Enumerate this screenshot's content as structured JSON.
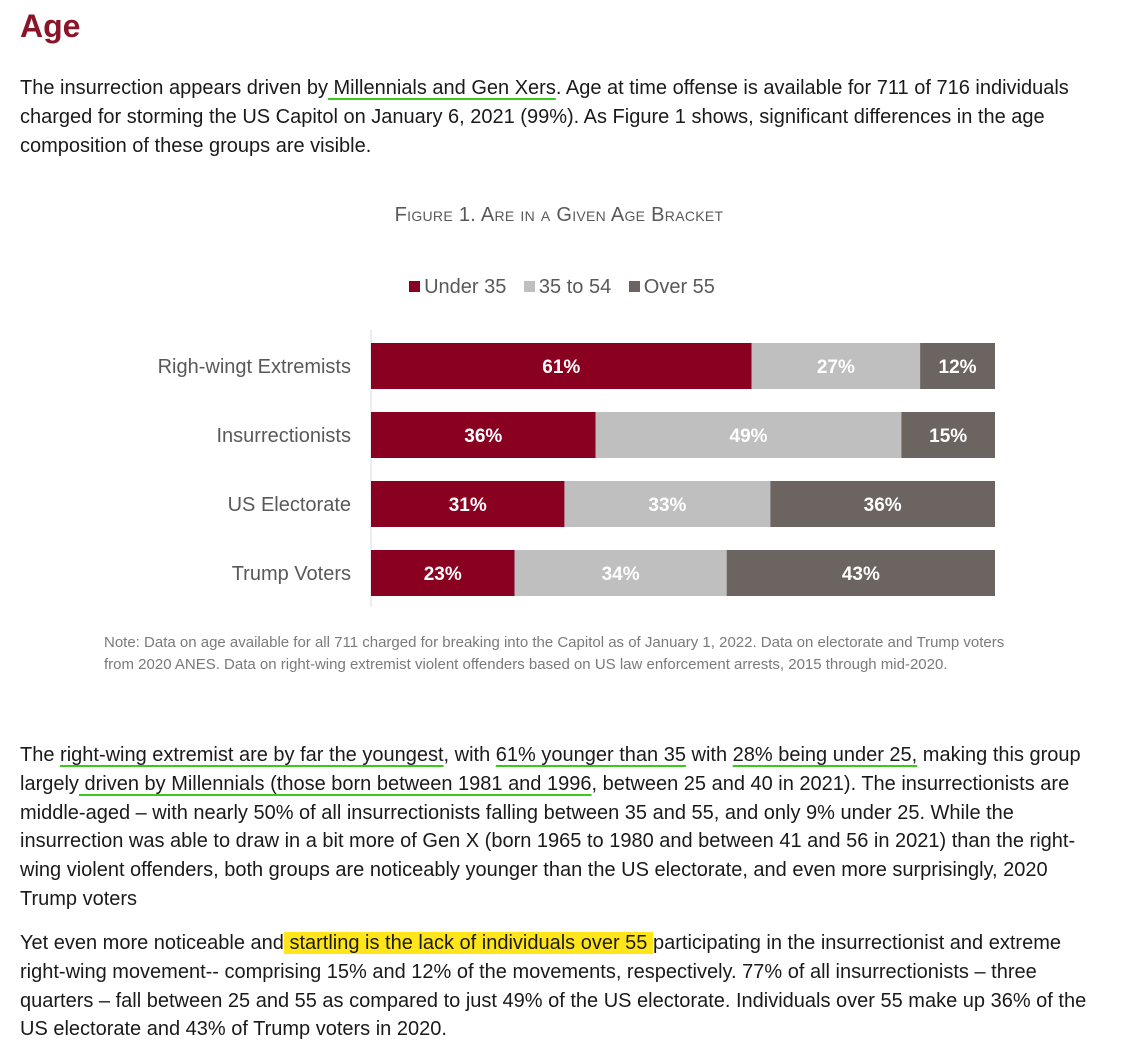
{
  "heading": "Age",
  "intro": {
    "t1": "The insurrection appears driven by",
    "u1": " Millennials and Gen Xers",
    "t2": ". Age at time offense is available for 711 of 716 individuals charged for storming the US Capitol on January 6, 2021 (99%). As Figure 1 shows, significant differences in the age composition of these groups are visible."
  },
  "figure_title": "Figure 1. Are in a Given Age Bracket",
  "chart_data": {
    "type": "bar",
    "orientation": "horizontal",
    "stacked": true,
    "title": "Figure 1. Are in a Given Age Bracket",
    "categories": [
      "Righ-wingt Extremists",
      "Insurrectionists",
      "US Electorate",
      "Trump Voters"
    ],
    "series": [
      {
        "name": "Under 35",
        "color": "#8a0021",
        "values": [
          61,
          36,
          31,
          23
        ],
        "labels": [
          "61%",
          "36%",
          "31%",
          "23%"
        ]
      },
      {
        "name": "35 to 54",
        "color": "#bfbfbf",
        "values": [
          27,
          49,
          33,
          34
        ],
        "labels": [
          "27%",
          "49%",
          "33%",
          "34%"
        ]
      },
      {
        "name": "Over 55",
        "color": "#6b6461",
        "values": [
          12,
          15,
          36,
          43
        ],
        "labels": [
          "12%",
          "15%",
          "36%",
          "43%"
        ]
      }
    ],
    "xlim": [
      0,
      100
    ],
    "legend": "top",
    "grid": false
  },
  "note": "Note: Data on age available for all 711 charged for breaking into the Capitol as of January 1, 2022. Data on electorate and Trump voters from 2020 ANES. Data on right-wing extremist violent offenders based on US law enforcement arrests, 2015 through mid-2020.",
  "para2": {
    "t1": "The ",
    "u1": "right-wing extremist are by far the youngest",
    "t2": ", with ",
    "u2": "61% younger than 35",
    "t3": " with ",
    "u3": "28% being under 25,",
    "t4": " making this group largely",
    "u4": " driven by Millennials (those born between 1981 and 1996",
    "t5": ", between 25 and 40 in 2021). The insurrectionists are middle-aged – with nearly 50% of all insurrectionists falling between 35 and 55, and only 9% under 25. While the insurrection was able to draw in a bit more of Gen X (born 1965 to 1980 and between 41 and 56 in 2021) than the right-wing violent offenders, both groups are noticeably younger than the US electorate, and even more surprisingly, 2020 Trump voters"
  },
  "para3": {
    "t1": "Yet even more noticeable and",
    "h1": " startling is the lack of individuals over 55 ",
    "t2": "participating in the insurrectionist and extreme right-wing movement-- comprising 15% and 12% of the movements, respectively. 77% of all insurrectionists – three quarters – fall between 25 and 55 as compared to just 49% of the US electorate. Individuals over 55 make up 36% of the US electorate and 43% of Trump voters in 2020."
  }
}
